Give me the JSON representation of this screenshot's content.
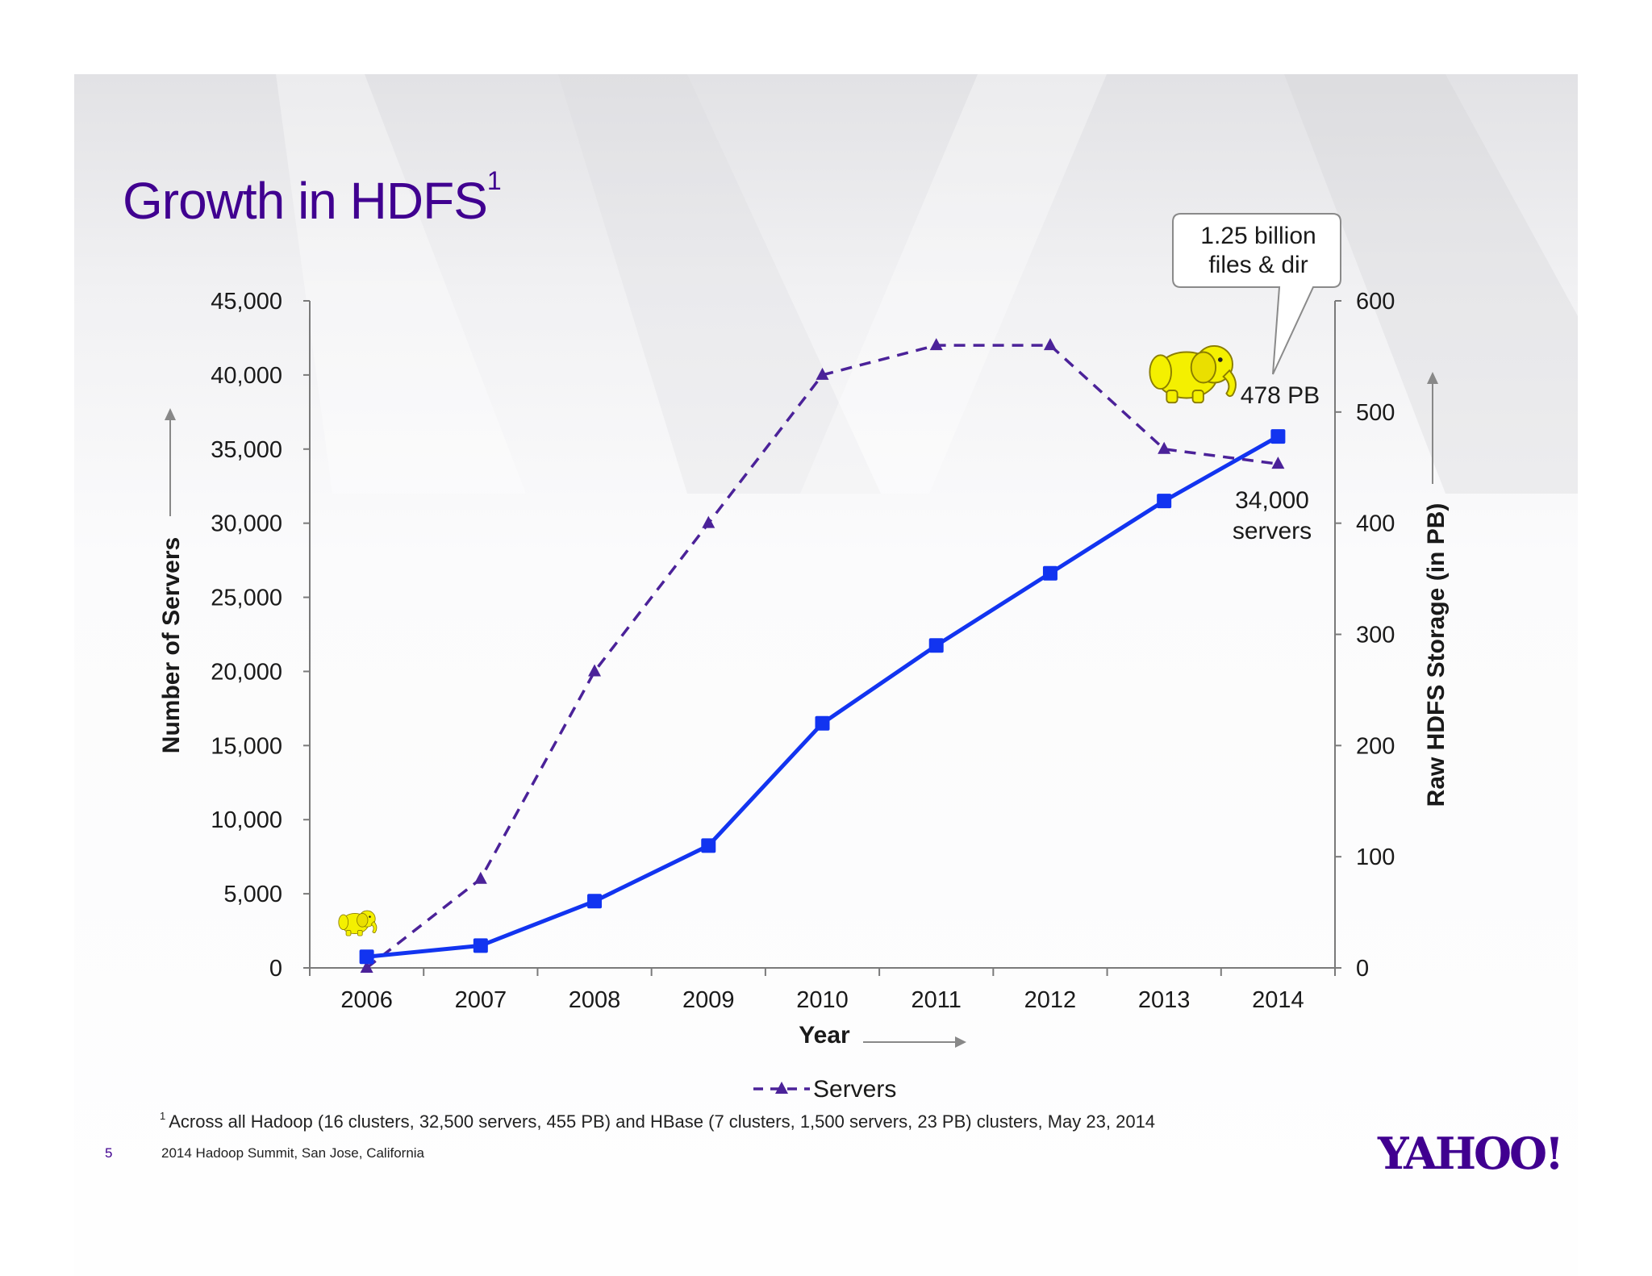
{
  "slide": {
    "title": "Growth in HDFS",
    "title_footnote_mark": "1",
    "footnote_mark": "1",
    "footnote": "Across all Hadoop (16 clusters, 32,500 servers, 455 PB) and HBase (7 clusters, 1,500 servers, 23 PB) clusters, May 23, 2014",
    "page_number": "5",
    "event": "2014 Hadoop Summit, San Jose, California",
    "logo": "YAHOO!"
  },
  "chart_data": {
    "type": "line",
    "title": "",
    "xlabel": "Year",
    "ylabel_left": "Number of Servers",
    "ylabel_right": "Raw HDFS Storage (in PB)",
    "categories": [
      "2006",
      "2007",
      "2008",
      "2009",
      "2010",
      "2011",
      "2012",
      "2013",
      "2014"
    ],
    "y_left": {
      "range": [
        0,
        45000
      ],
      "ticks": [
        0,
        5000,
        10000,
        15000,
        20000,
        25000,
        30000,
        35000,
        40000,
        45000
      ],
      "tick_labels": [
        "0",
        "5,000",
        "10,000",
        "15,000",
        "20,000",
        "25,000",
        "30,000",
        "35,000",
        "40,000",
        "45,000"
      ]
    },
    "y_right": {
      "range": [
        0,
        600
      ],
      "ticks": [
        0,
        100,
        200,
        300,
        400,
        500,
        600
      ],
      "tick_labels": [
        "0",
        "100",
        "200",
        "300",
        "400",
        "500",
        "600"
      ]
    },
    "series": [
      {
        "name": "Servers",
        "axis": "left",
        "style": "dashed",
        "marker": "triangle",
        "color": "#4b2299",
        "values": [
          0,
          6000,
          20000,
          30000,
          40000,
          42000,
          42000,
          35000,
          34000
        ]
      },
      {
        "axis": "right",
        "style": "solid",
        "marker": "square",
        "color": "#1234f0",
        "values": [
          10,
          20,
          60,
          110,
          220,
          290,
          355,
          420,
          478
        ]
      }
    ],
    "annotations": {
      "callout": "1.25 billion\nfiles & dir",
      "storage_label": "478 PB",
      "servers_label": "34,000\nservers"
    },
    "legend": "bottom-center",
    "grid": false
  }
}
